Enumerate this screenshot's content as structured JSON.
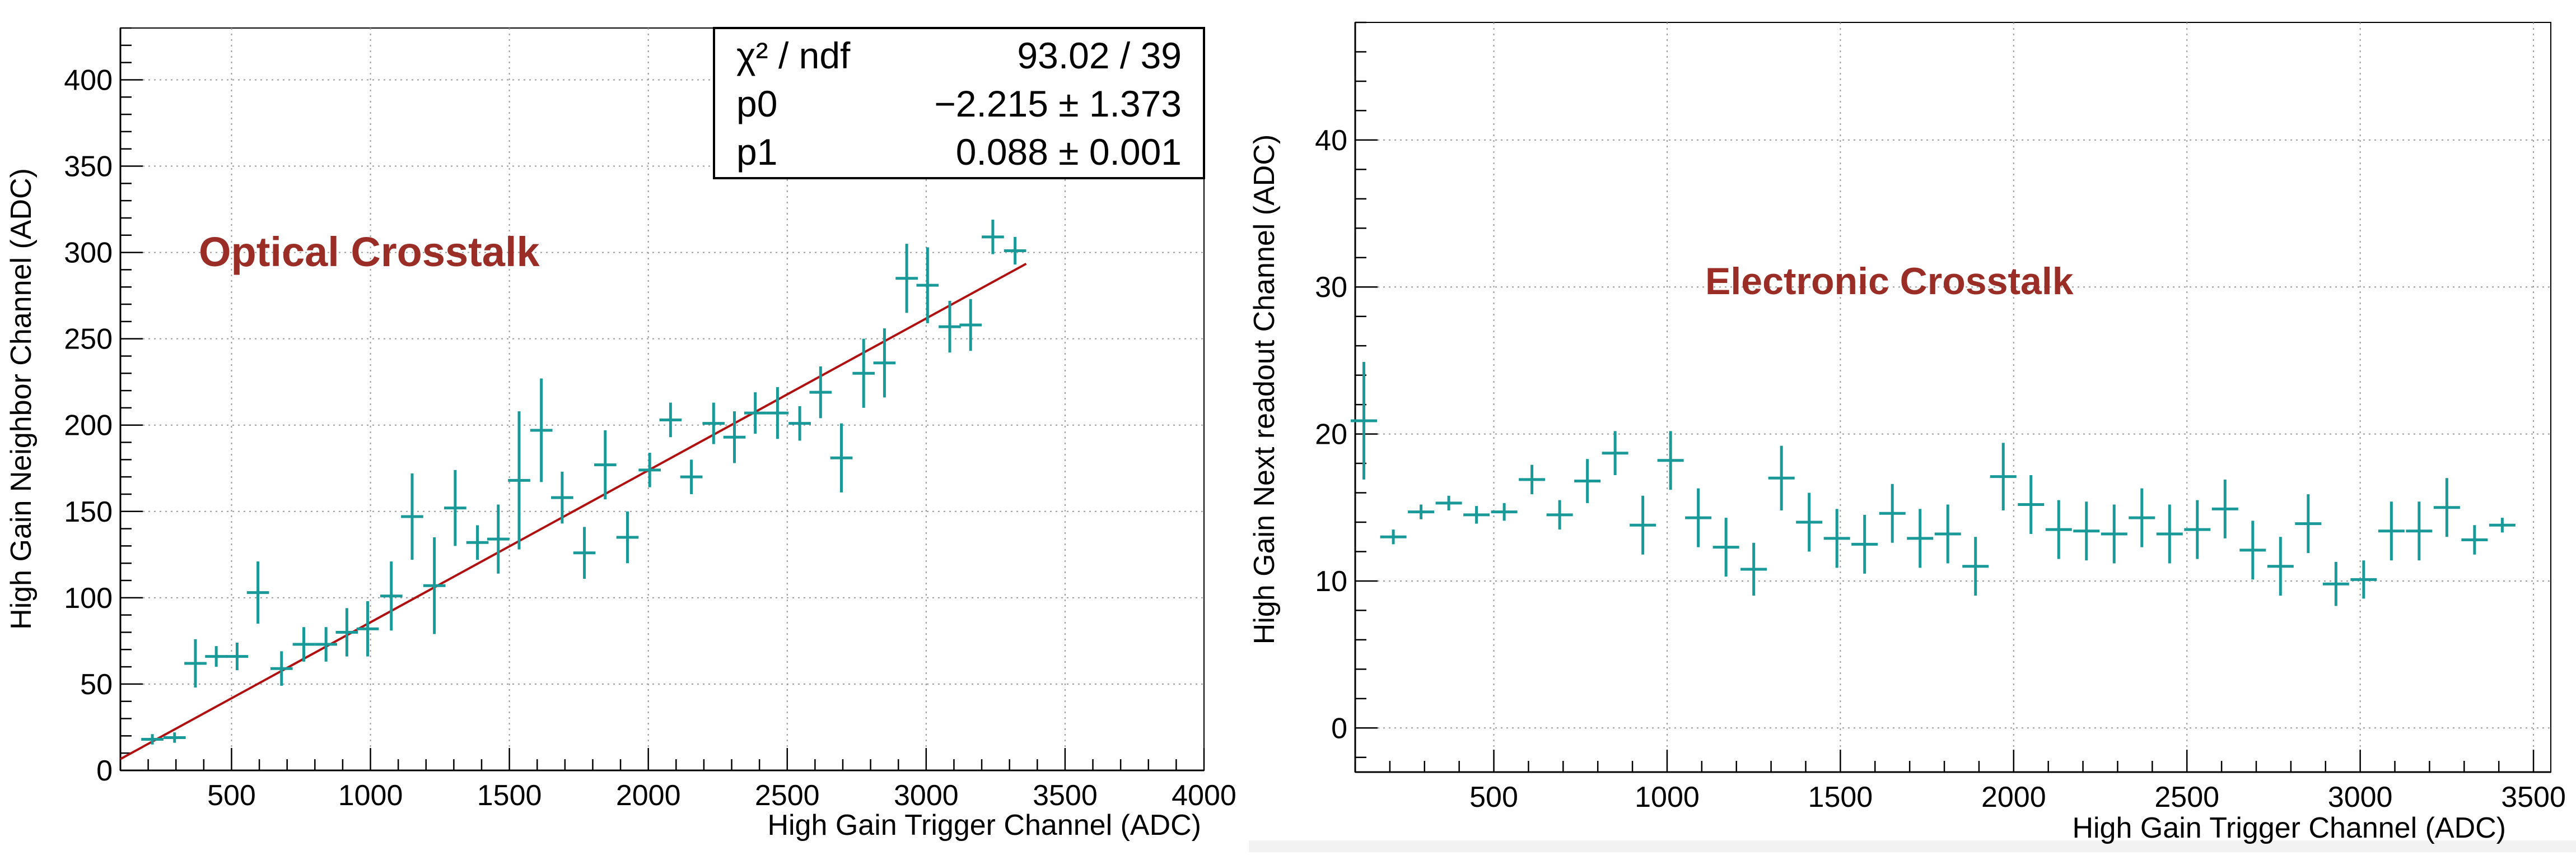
{
  "chart_data": [
    {
      "type": "scatter",
      "title": "",
      "annotation": "Optical Crosstalk",
      "annotation_color": "#9b2d27",
      "xlabel": "High Gain Trigger Channel (ADC)",
      "ylabel": "High Gain Neighbor Channel (ADC)",
      "xlim": [
        100,
        4000
      ],
      "ylim": [
        0,
        430
      ],
      "xticks": [
        500,
        1000,
        1500,
        2000,
        2500,
        3000,
        3500,
        4000
      ],
      "xtick_labels": [
        "500",
        "1000",
        "1500",
        "2000",
        "2500",
        "3000",
        "3500",
        "4000"
      ],
      "yticks": [
        0,
        50,
        100,
        150,
        200,
        250,
        300,
        350,
        400
      ],
      "ytick_labels": [
        "0",
        "50",
        "100",
        "150",
        "200",
        "250",
        "300",
        "350",
        "400"
      ],
      "grid": true,
      "marker_color": "#1a9999",
      "series": [
        {
          "name": "data",
          "x": [
            215,
            295,
            370,
            445,
            520,
            595,
            680,
            760,
            840,
            915,
            990,
            1075,
            1150,
            1230,
            1305,
            1385,
            1460,
            1535,
            1615,
            1690,
            1770,
            1845,
            1925,
            2005,
            2080,
            2155,
            2235,
            2310,
            2385,
            2465,
            2545,
            2620,
            2695,
            2775,
            2850,
            2930,
            3005,
            3085,
            3160,
            3240,
            3320
          ],
          "y": [
            18,
            19,
            62,
            66,
            66,
            103,
            59,
            73,
            73,
            80,
            82,
            101,
            147,
            107,
            152,
            132,
            134,
            168,
            197,
            158,
            126,
            177,
            135,
            174,
            203,
            170,
            201,
            193,
            207,
            207,
            201,
            219,
            181,
            230,
            236,
            285,
            281,
            257,
            258,
            309,
            301
          ],
          "yerr": [
            3,
            3,
            14,
            6,
            8,
            18,
            10,
            10,
            10,
            14,
            16,
            20,
            25,
            28,
            22,
            10,
            20,
            40,
            30,
            15,
            15,
            20,
            15,
            10,
            10,
            10,
            12,
            15,
            12,
            15,
            10,
            15,
            20,
            20,
            20,
            20,
            22,
            15,
            15,
            10,
            8
          ],
          "xerr": [
            40,
            40,
            40,
            40,
            40,
            40,
            40,
            40,
            40,
            40,
            40,
            40,
            40,
            40,
            40,
            40,
            40,
            40,
            40,
            40,
            40,
            40,
            40,
            40,
            40,
            40,
            40,
            40,
            40,
            40,
            40,
            40,
            40,
            40,
            40,
            40,
            40,
            40,
            40,
            40,
            40
          ]
        }
      ],
      "fit": {
        "type": "line",
        "color": "#b01010",
        "x_range": [
          100,
          3360
        ],
        "p0": -2.215,
        "p1": 0.088
      },
      "stats": {
        "rows": [
          {
            "label": "χ² / ndf",
            "value": "93.02 / 39"
          },
          {
            "label": "p0",
            "value": "−2.215 ± 1.373"
          },
          {
            "label": "p1",
            "value": "0.088 ± 0.001"
          }
        ]
      }
    },
    {
      "type": "scatter",
      "title": "",
      "annotation": "Electronic Crosstalk",
      "annotation_color": "#9b2d27",
      "xlabel": "High Gain Trigger Channel (ADC)",
      "ylabel": "High Gain Next readout Channel (ADC)",
      "xlim": [
        100,
        3550
      ],
      "ylim": [
        -3,
        48
      ],
      "xticks": [
        500,
        1000,
        1500,
        2000,
        2500,
        3000,
        3500
      ],
      "xtick_labels": [
        "500",
        "1000",
        "1500",
        "2000",
        "2500",
        "3000",
        "3500"
      ],
      "yticks": [
        0,
        10,
        20,
        30,
        40
      ],
      "ytick_labels": [
        "0",
        "10",
        "20",
        "30",
        "40"
      ],
      "grid": true,
      "marker_color": "#1a9999",
      "series": [
        {
          "name": "data",
          "x": [
            125,
            210,
            290,
            370,
            450,
            530,
            610,
            690,
            770,
            850,
            930,
            1010,
            1090,
            1170,
            1250,
            1330,
            1410,
            1490,
            1570,
            1650,
            1730,
            1810,
            1890,
            1970,
            2050,
            2130,
            2210,
            2290,
            2370,
            2450,
            2530,
            2610,
            2690,
            2770,
            2850,
            2930,
            3010,
            3090,
            3170,
            3250,
            3330,
            3410
          ],
          "y": [
            20.9,
            13.0,
            14.7,
            15.3,
            14.5,
            14.7,
            16.9,
            14.5,
            16.8,
            18.7,
            13.8,
            18.2,
            14.3,
            12.3,
            10.8,
            17.0,
            14.0,
            12.9,
            12.5,
            14.6,
            12.9,
            13.2,
            11.0,
            17.1,
            15.2,
            13.5,
            13.4,
            13.2,
            14.3,
            13.2,
            13.5,
            14.9,
            12.1,
            11.0,
            13.9,
            9.8,
            10.1,
            13.4,
            13.4,
            15.0,
            12.8,
            13.8
          ],
          "yerr": [
            4.0,
            0.5,
            0.5,
            0.5,
            0.6,
            0.6,
            1.0,
            1.0,
            1.5,
            1.5,
            2.0,
            2.0,
            2.0,
            2.0,
            1.8,
            2.2,
            2.0,
            2.0,
            2.0,
            2.0,
            2.0,
            2.0,
            2.0,
            2.3,
            2.0,
            2.0,
            2.0,
            2.0,
            2.0,
            2.0,
            2.0,
            2.0,
            2.0,
            2.0,
            2.0,
            1.5,
            1.3,
            2.0,
            2.0,
            2.0,
            1.0,
            0.5
          ],
          "xerr": [
            38,
            38,
            38,
            38,
            38,
            38,
            38,
            38,
            38,
            38,
            38,
            38,
            38,
            38,
            38,
            38,
            38,
            38,
            38,
            38,
            38,
            38,
            38,
            38,
            38,
            38,
            38,
            38,
            38,
            38,
            38,
            38,
            38,
            38,
            38,
            38,
            38,
            38,
            38,
            38,
            38,
            38
          ]
        }
      ]
    }
  ]
}
